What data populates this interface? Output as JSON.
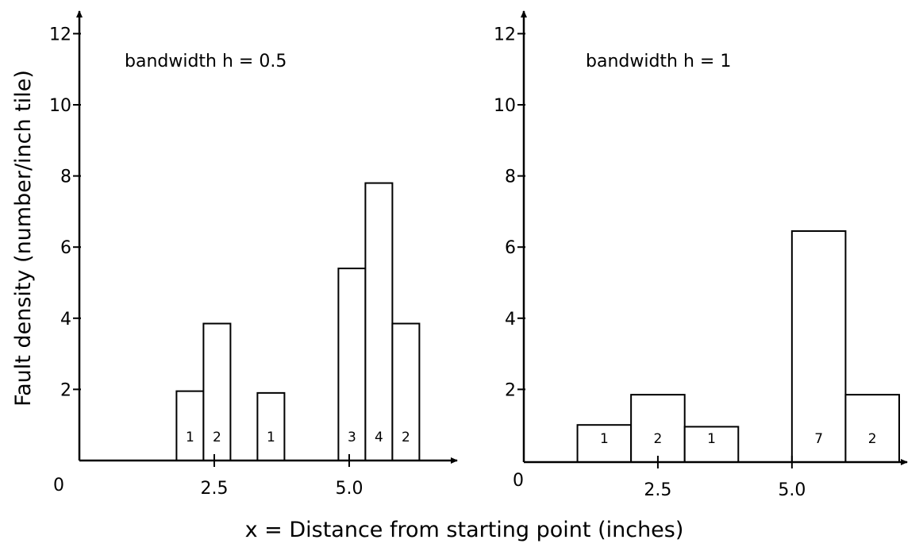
{
  "chart_data": [
    {
      "type": "bar",
      "annotation": "bandwidth h = 0.5",
      "ylabel": "Fault density (number/inch tile)",
      "xlabel": "x = Distance from starting point (inches)",
      "xlim": [
        0,
        7
      ],
      "ylim": [
        0,
        12.5
      ],
      "x_ticks": [
        2.5,
        5.0
      ],
      "x_tick_labels": [
        "2.5",
        "5.0"
      ],
      "y_ticks": [
        2,
        4,
        6,
        8,
        10,
        12
      ],
      "y_tick_labels": [
        "2",
        "4",
        "6",
        "8",
        "10",
        "12"
      ],
      "origin_label": "0",
      "bars": [
        {
          "x0": 1.8,
          "x1": 2.3,
          "value": 1.95,
          "count": "1"
        },
        {
          "x0": 2.3,
          "x1": 2.8,
          "value": 3.85,
          "count": "2"
        },
        {
          "x0": 3.3,
          "x1": 3.8,
          "value": 1.9,
          "count": "1"
        },
        {
          "x0": 4.8,
          "x1": 5.3,
          "value": 5.4,
          "count": "3"
        },
        {
          "x0": 5.3,
          "x1": 5.8,
          "value": 7.8,
          "count": "4"
        },
        {
          "x0": 5.8,
          "x1": 6.3,
          "value": 3.85,
          "count": "2"
        }
      ]
    },
    {
      "type": "bar",
      "annotation": "bandwidth h = 1",
      "xlim": [
        0,
        7
      ],
      "ylim": [
        0,
        12.5
      ],
      "x_ticks": [
        2.5,
        5.0
      ],
      "x_tick_labels": [
        "2.5",
        "5.0"
      ],
      "y_ticks": [
        2,
        4,
        6,
        8,
        10,
        12
      ],
      "y_tick_labels": [
        "2",
        "4",
        "6",
        "8",
        "10",
        "12"
      ],
      "origin_label": "0",
      "bars": [
        {
          "x0": 1.0,
          "x1": 2.0,
          "value": 1.0,
          "count": "1"
        },
        {
          "x0": 2.0,
          "x1": 3.0,
          "value": 1.85,
          "count": "2"
        },
        {
          "x0": 3.0,
          "x1": 4.0,
          "value": 0.95,
          "count": "1"
        },
        {
          "x0": 5.0,
          "x1": 6.0,
          "value": 6.45,
          "count": "7"
        },
        {
          "x0": 6.0,
          "x1": 7.0,
          "value": 1.85,
          "count": "2"
        }
      ]
    }
  ]
}
